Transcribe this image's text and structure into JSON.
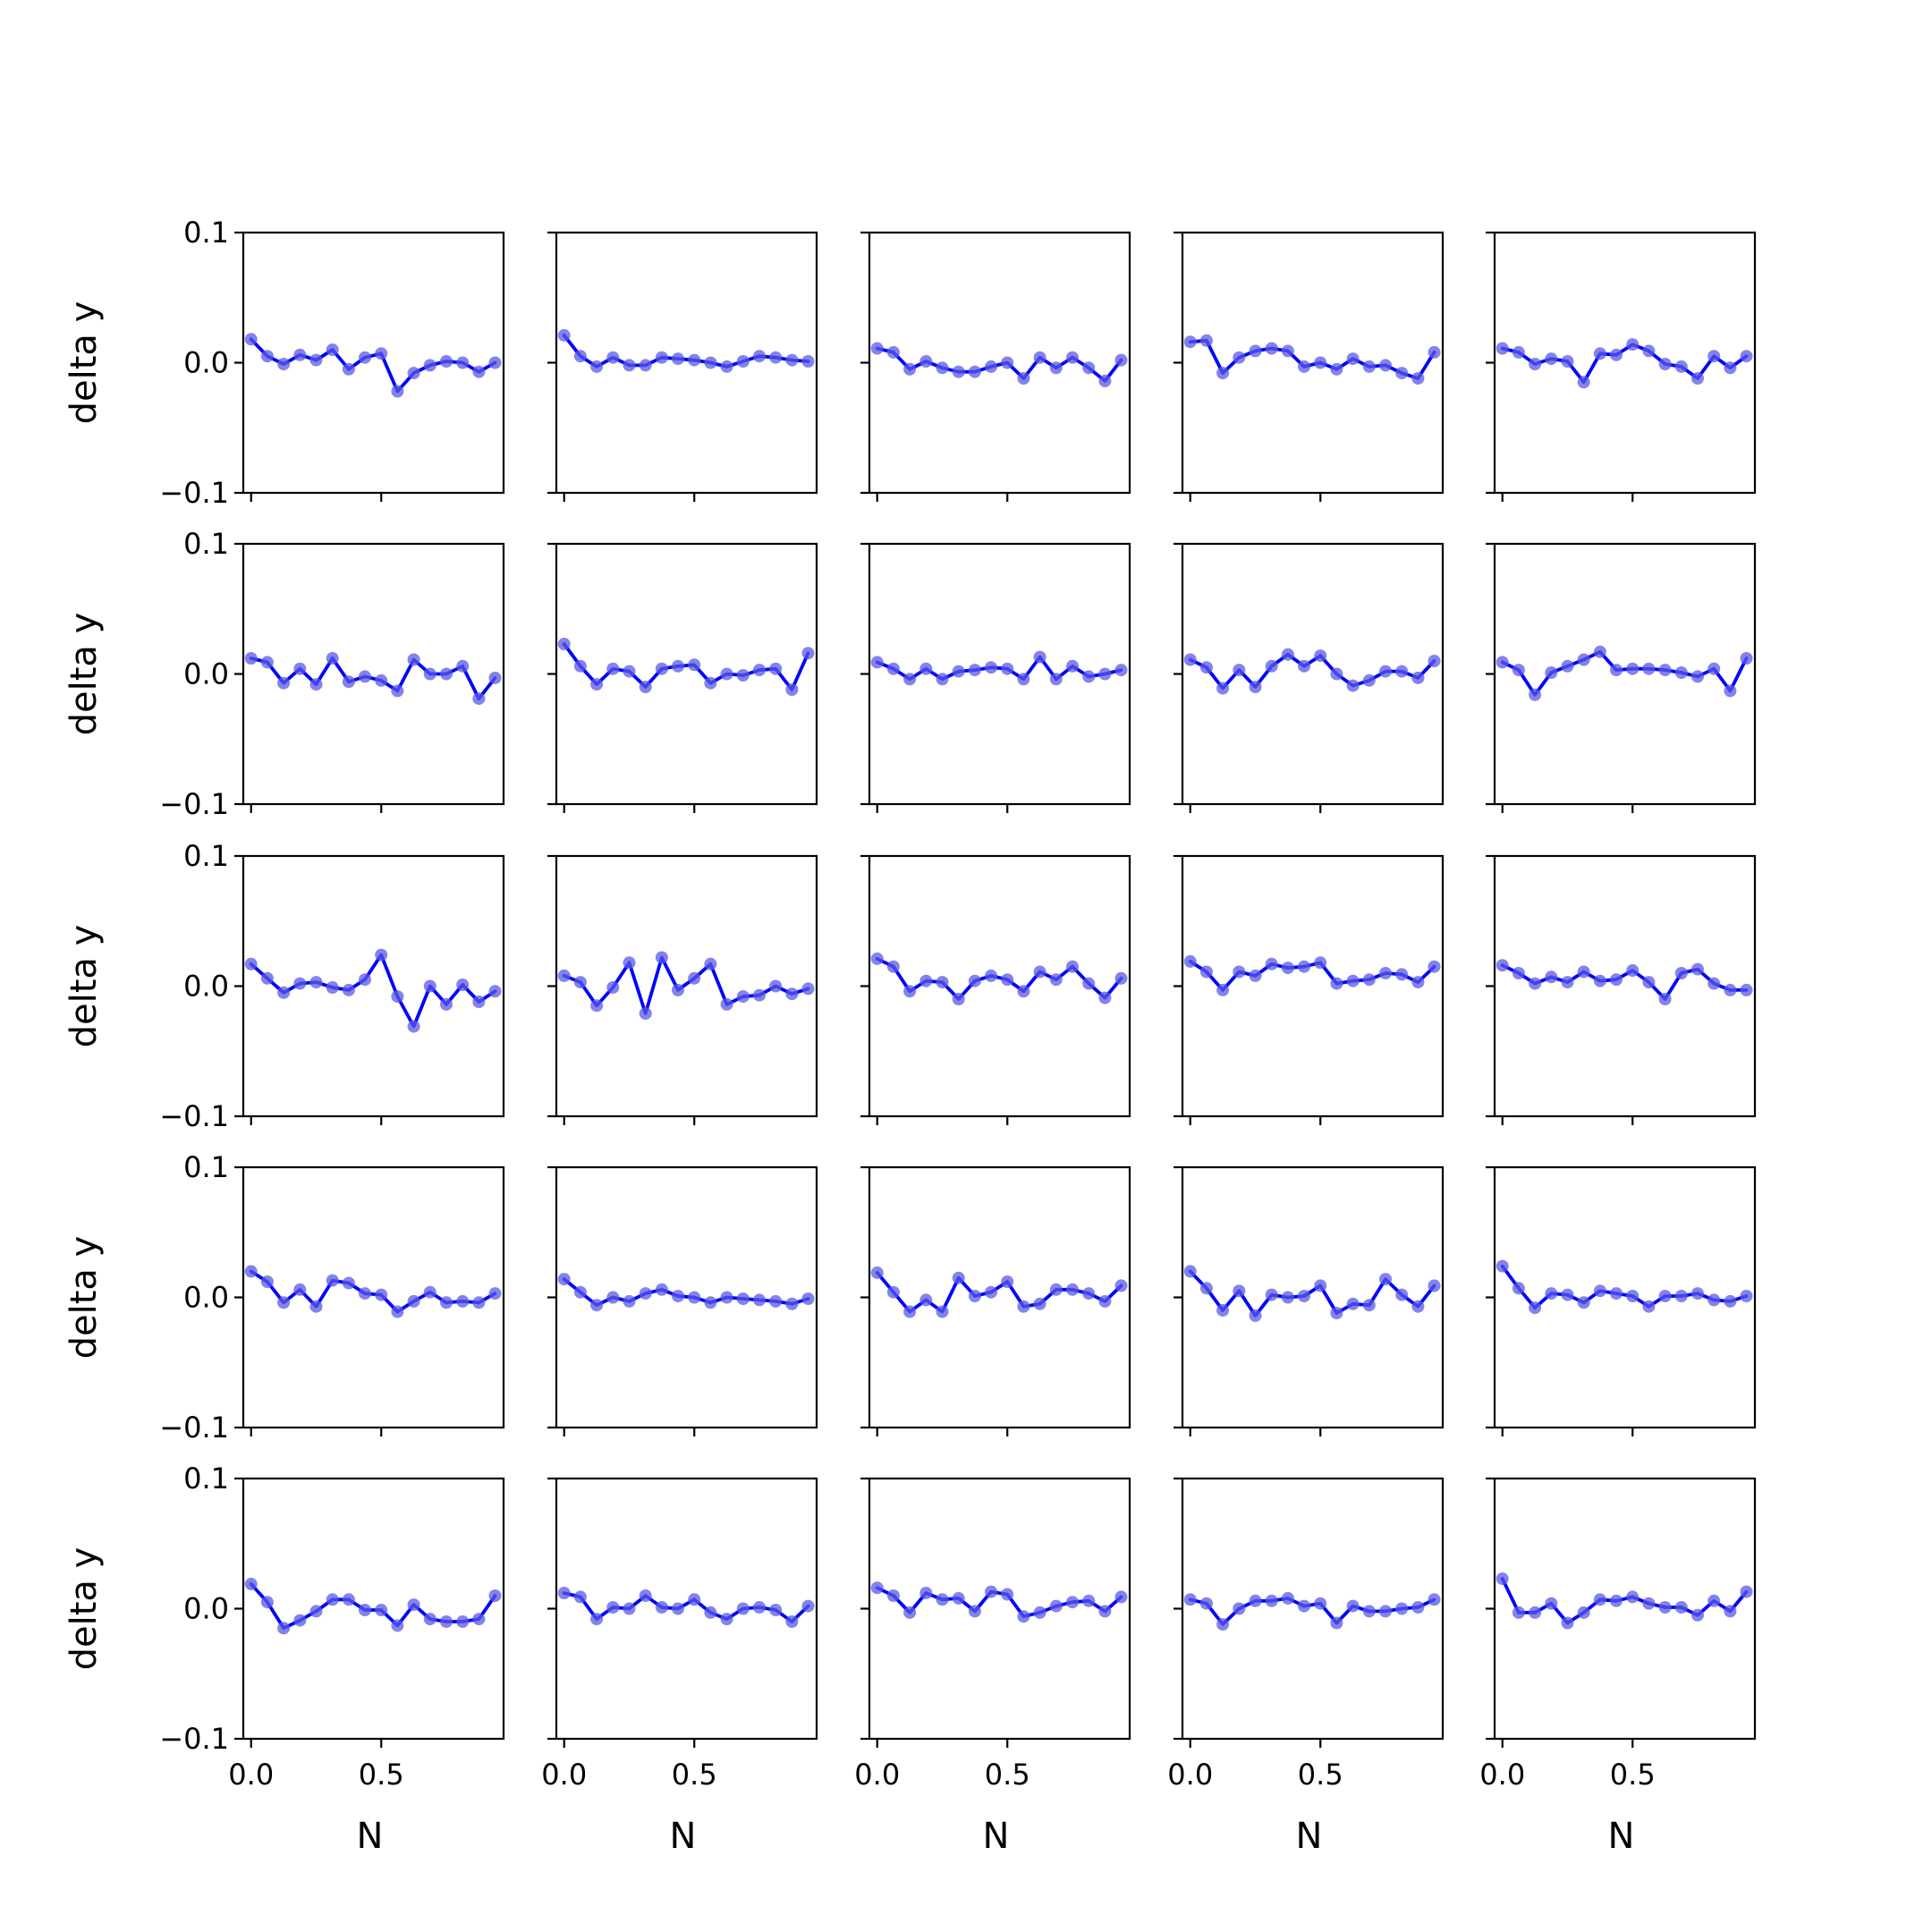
{
  "chart_data": {
    "type": "line",
    "layout": {
      "rows": 5,
      "cols": 5,
      "sharex": true,
      "sharey": true
    },
    "xlabel": "N",
    "ylabel": "delta y",
    "xlim": [
      -0.03,
      0.97
    ],
    "ylim": [
      -0.1,
      0.1
    ],
    "xticks": [
      0.0,
      0.5
    ],
    "xtick_labels": [
      "0.0",
      "0.5"
    ],
    "yticks": [
      0.1,
      0.0,
      -0.1
    ],
    "ytick_labels": [
      "0.1",
      "0.0",
      "−0.1"
    ],
    "line_color": "#0000ff",
    "marker_color": "#5a5ae6",
    "x": [
      0.0,
      0.0625,
      0.125,
      0.1875,
      0.25,
      0.3125,
      0.375,
      0.4375,
      0.5,
      0.5625,
      0.625,
      0.6875,
      0.75,
      0.8125,
      0.875,
      0.9375
    ],
    "panels": [
      {
        "values": [
          0.018,
          0.005,
          -0.001,
          0.006,
          0.002,
          0.01,
          -0.005,
          0.004,
          0.007,
          -0.022,
          -0.008,
          -0.002,
          0.001,
          0.0,
          -0.007,
          0.0
        ]
      },
      {
        "values": [
          0.021,
          0.005,
          -0.003,
          0.004,
          -0.002,
          -0.002,
          0.004,
          0.003,
          0.002,
          0.0,
          -0.003,
          0.001,
          0.005,
          0.004,
          0.002,
          0.001
        ]
      },
      {
        "values": [
          0.011,
          0.008,
          -0.005,
          0.001,
          -0.004,
          -0.007,
          -0.007,
          -0.003,
          0.0,
          -0.012,
          0.004,
          -0.004,
          0.004,
          -0.004,
          -0.014,
          0.002
        ]
      },
      {
        "values": [
          0.016,
          0.017,
          -0.008,
          0.004,
          0.009,
          0.011,
          0.009,
          -0.003,
          0.0,
          -0.005,
          0.003,
          -0.003,
          -0.002,
          -0.008,
          -0.012,
          0.008
        ]
      },
      {
        "values": [
          0.011,
          0.008,
          -0.001,
          0.003,
          0.001,
          -0.015,
          0.007,
          0.006,
          0.014,
          0.009,
          -0.001,
          -0.003,
          -0.012,
          0.005,
          -0.004,
          0.005
        ]
      },
      {
        "values": [
          0.012,
          0.009,
          -0.007,
          0.004,
          -0.008,
          0.012,
          -0.006,
          -0.002,
          -0.005,
          -0.013,
          0.011,
          0.0,
          0.0,
          0.006,
          -0.019,
          -0.003
        ]
      },
      {
        "values": [
          0.023,
          0.006,
          -0.008,
          0.004,
          0.002,
          -0.01,
          0.004,
          0.006,
          0.007,
          -0.007,
          0.0,
          -0.001,
          0.003,
          0.004,
          -0.012,
          0.016
        ]
      },
      {
        "values": [
          0.009,
          0.004,
          -0.004,
          0.004,
          -0.004,
          0.002,
          0.003,
          0.005,
          0.004,
          -0.004,
          0.013,
          -0.004,
          0.006,
          -0.002,
          0.0,
          0.003
        ]
      },
      {
        "values": [
          0.011,
          0.005,
          -0.011,
          0.003,
          -0.01,
          0.006,
          0.015,
          0.006,
          0.014,
          0.0,
          -0.009,
          -0.005,
          0.002,
          0.002,
          -0.003,
          0.01
        ]
      },
      {
        "values": [
          0.009,
          0.003,
          -0.016,
          0.001,
          0.006,
          0.011,
          0.017,
          0.003,
          0.004,
          0.004,
          0.003,
          0.001,
          -0.002,
          0.004,
          -0.013,
          0.012
        ]
      },
      {
        "values": [
          0.017,
          0.006,
          -0.005,
          0.002,
          0.003,
          -0.001,
          -0.003,
          0.005,
          0.024,
          -0.008,
          -0.031,
          0.0,
          -0.014,
          0.001,
          -0.012,
          -0.004
        ]
      },
      {
        "values": [
          0.008,
          0.003,
          -0.015,
          -0.001,
          0.018,
          -0.021,
          0.022,
          -0.003,
          0.006,
          0.017,
          -0.014,
          -0.008,
          -0.007,
          0.0,
          -0.006,
          -0.002
        ]
      },
      {
        "values": [
          0.021,
          0.015,
          -0.004,
          0.004,
          0.003,
          -0.01,
          0.004,
          0.008,
          0.005,
          -0.004,
          0.011,
          0.005,
          0.015,
          0.002,
          -0.009,
          0.006
        ]
      },
      {
        "values": [
          0.019,
          0.011,
          -0.003,
          0.011,
          0.008,
          0.017,
          0.014,
          0.015,
          0.018,
          0.002,
          0.004,
          0.005,
          0.01,
          0.009,
          0.003,
          0.015
        ]
      },
      {
        "values": [
          0.016,
          0.01,
          0.002,
          0.007,
          0.003,
          0.011,
          0.004,
          0.005,
          0.012,
          0.003,
          -0.01,
          0.01,
          0.013,
          0.002,
          -0.003,
          -0.003
        ]
      },
      {
        "values": [
          0.02,
          0.012,
          -0.004,
          0.006,
          -0.007,
          0.013,
          0.011,
          0.003,
          0.002,
          -0.011,
          -0.003,
          0.004,
          -0.004,
          -0.003,
          -0.004,
          0.003
        ]
      },
      {
        "values": [
          0.014,
          0.004,
          -0.006,
          0.0,
          -0.003,
          0.003,
          0.006,
          0.001,
          0.0,
          -0.004,
          0.0,
          -0.001,
          -0.002,
          -0.003,
          -0.005,
          -0.001
        ]
      },
      {
        "values": [
          0.019,
          0.004,
          -0.011,
          -0.002,
          -0.011,
          0.015,
          0.001,
          0.004,
          0.012,
          -0.007,
          -0.005,
          0.006,
          0.006,
          0.003,
          -0.003,
          0.009
        ]
      },
      {
        "values": [
          0.02,
          0.007,
          -0.01,
          0.005,
          -0.014,
          0.002,
          0.0,
          0.001,
          0.009,
          -0.012,
          -0.005,
          -0.006,
          0.014,
          0.002,
          -0.007,
          0.009
        ]
      },
      {
        "values": [
          0.024,
          0.007,
          -0.008,
          0.003,
          0.002,
          -0.004,
          0.005,
          0.003,
          0.001,
          -0.007,
          0.001,
          0.001,
          0.003,
          -0.002,
          -0.003,
          0.001
        ]
      },
      {
        "values": [
          0.019,
          0.005,
          -0.015,
          -0.009,
          -0.002,
          0.007,
          0.007,
          -0.001,
          -0.001,
          -0.013,
          0.003,
          -0.008,
          -0.01,
          -0.01,
          -0.008,
          0.01
        ]
      },
      {
        "values": [
          0.012,
          0.009,
          -0.008,
          0.001,
          0.0,
          0.01,
          0.001,
          0.0,
          0.007,
          -0.003,
          -0.008,
          0.0,
          0.001,
          -0.001,
          -0.01,
          0.002
        ]
      },
      {
        "values": [
          0.016,
          0.01,
          -0.003,
          0.012,
          0.007,
          0.008,
          -0.002,
          0.013,
          0.011,
          -0.006,
          -0.003,
          0.002,
          0.005,
          0.006,
          -0.002,
          0.009
        ]
      },
      {
        "values": [
          0.007,
          0.004,
          -0.012,
          0.0,
          0.006,
          0.006,
          0.008,
          0.002,
          0.004,
          -0.011,
          0.002,
          -0.002,
          -0.002,
          0.0,
          0.001,
          0.007
        ]
      },
      {
        "values": [
          0.023,
          -0.003,
          -0.003,
          0.004,
          -0.011,
          -0.003,
          0.007,
          0.006,
          0.009,
          0.004,
          0.001,
          0.001,
          -0.005,
          0.006,
          -0.002,
          0.013
        ]
      }
    ]
  }
}
